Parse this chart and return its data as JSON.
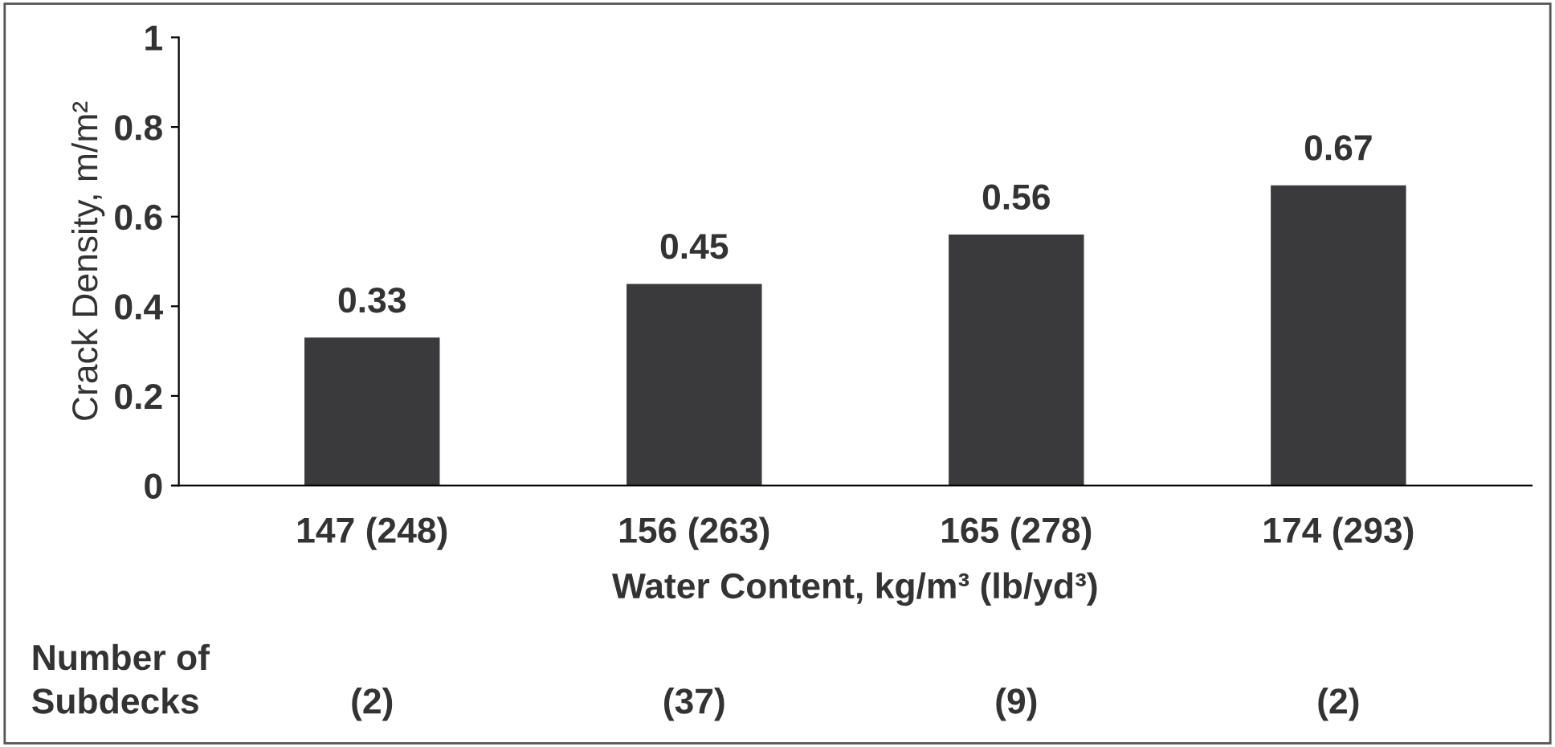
{
  "chart_data": {
    "type": "bar",
    "categories": [
      "147 (248)",
      "156 (263)",
      "165 (278)",
      "174 (293)"
    ],
    "values": [
      0.33,
      0.45,
      0.56,
      0.67
    ],
    "color": "#3a3a3c",
    "data_labels": true,
    "ylabel": "Crack Density, m/m²",
    "xlabel": "Water Content, kg/m³ (lb/yd³)",
    "ylim": [
      0,
      1
    ],
    "yticks": [
      0,
      0.2,
      0.4,
      0.6,
      0.8,
      1
    ],
    "grid": false,
    "legend": false,
    "annotations": [
      "Number of\nSubdecks",
      "(2)",
      "(37)",
      "(9)",
      "(2)"
    ]
  }
}
